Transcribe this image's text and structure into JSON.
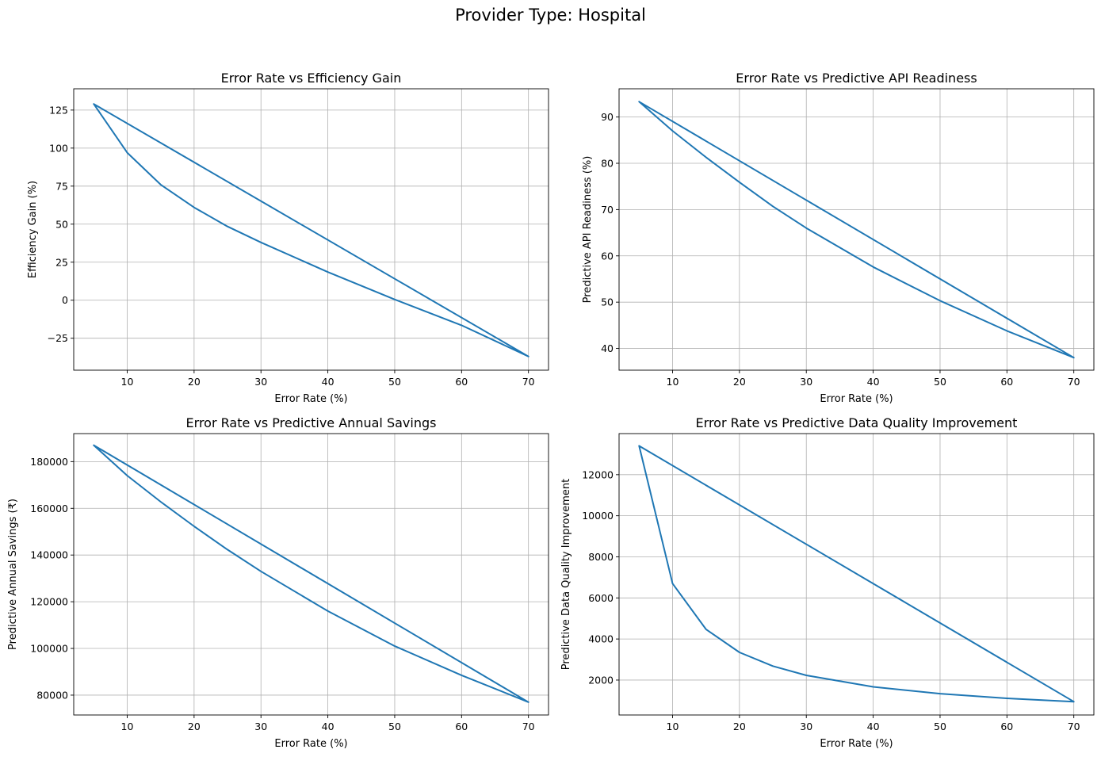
{
  "figure": {
    "suptitle": "Provider Type: Hospital"
  },
  "style": {
    "line_color": "#1f77b4",
    "grid_color": "#b0b0b0",
    "axes_color": "#000000"
  },
  "chart_data": [
    {
      "id": "eff",
      "type": "line",
      "title": "Error Rate vs Efficiency Gain",
      "xlabel": "Error Rate (%)",
      "ylabel": "Efficiency Gain (%)",
      "xlim": [
        2,
        73
      ],
      "ylim": [
        -46,
        139
      ],
      "xticks": [
        10,
        20,
        30,
        40,
        50,
        60,
        70
      ],
      "yticks": [
        -25,
        0,
        25,
        50,
        75,
        100,
        125
      ],
      "grid": true,
      "x": [
        5,
        10,
        15,
        20,
        25,
        30,
        40,
        50,
        60,
        70,
        5
      ],
      "y": [
        129,
        97,
        76,
        61,
        48.5,
        38,
        18.5,
        0.5,
        -16.5,
        -37,
        129
      ]
    },
    {
      "id": "api",
      "type": "line",
      "title": "Error Rate vs Predictive API Readiness",
      "xlabel": "Error Rate (%)",
      "ylabel": "Predictive API Readiness (%)",
      "xlim": [
        2,
        73
      ],
      "ylim": [
        35.3,
        96.1
      ],
      "xticks": [
        10,
        20,
        30,
        40,
        50,
        60,
        70
      ],
      "yticks": [
        40,
        50,
        60,
        70,
        80,
        90
      ],
      "grid": true,
      "x": [
        5,
        10,
        15,
        20,
        25,
        30,
        40,
        50,
        60,
        70,
        5
      ],
      "y": [
        93.3,
        87,
        81.3,
        75.9,
        70.7,
        66,
        57.6,
        50.3,
        43.8,
        38,
        93.3
      ]
    },
    {
      "id": "sav",
      "type": "line",
      "title": "Error Rate vs Predictive Annual Savings",
      "xlabel": "Error Rate (%)",
      "ylabel": "Predictive Annual Savings (₹)",
      "xlim": [
        2,
        73
      ],
      "ylim": [
        71500,
        192000
      ],
      "xticks": [
        10,
        20,
        30,
        40,
        50,
        60,
        70
      ],
      "yticks": [
        80000,
        100000,
        120000,
        140000,
        160000,
        180000
      ],
      "grid": true,
      "x": [
        5,
        10,
        15,
        20,
        25,
        30,
        40,
        50,
        60,
        70,
        5
      ],
      "y": [
        187000,
        174000,
        162800,
        152300,
        142300,
        133000,
        116000,
        101000,
        88500,
        77000,
        187000
      ]
    },
    {
      "id": "dq",
      "type": "line",
      "title": "Error Rate vs Predictive Data Quality Improvement",
      "xlabel": "Error Rate (%)",
      "ylabel": "Predictive Data Quality Improvement",
      "xlim": [
        2,
        73
      ],
      "ylim": [
        300,
        14000
      ],
      "xticks": [
        10,
        20,
        30,
        40,
        50,
        60,
        70
      ],
      "yticks": [
        2000,
        4000,
        6000,
        8000,
        10000,
        12000
      ],
      "grid": true,
      "x": [
        5,
        10,
        15,
        20,
        25,
        30,
        40,
        50,
        60,
        70,
        5
      ],
      "y": [
        13400,
        6700,
        4470,
        3350,
        2680,
        2230,
        1670,
        1340,
        1110,
        950,
        13400
      ]
    }
  ]
}
